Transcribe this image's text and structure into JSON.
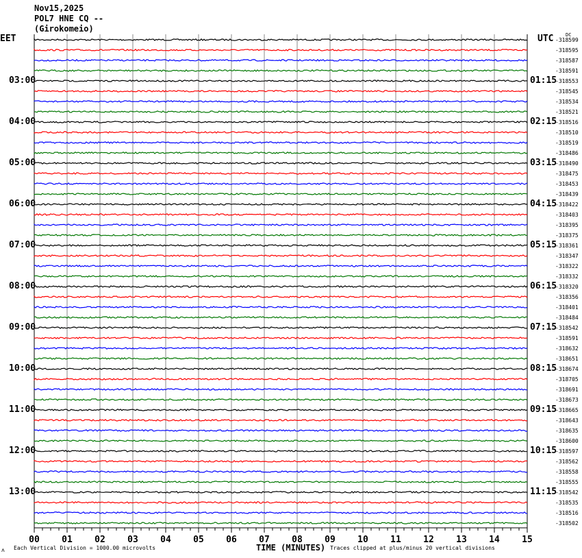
{
  "header": {
    "date": "Nov15,2025",
    "station": "POL7 HNE CQ --",
    "location": "(Girokomeio)"
  },
  "left_timezone": "EET",
  "right_timezone": "UTC",
  "dc_label": "DC",
  "chart_data": {
    "type": "line",
    "subtype": "helicorder",
    "xlabel": "TIME (MINUTES)",
    "x_ticks": [
      "00",
      "01",
      "02",
      "03",
      "04",
      "05",
      "06",
      "07",
      "08",
      "09",
      "10",
      "11",
      "12",
      "13",
      "14",
      "15"
    ],
    "xlim": [
      0,
      15
    ],
    "grid": true,
    "trace_colors": [
      "#000000",
      "#ff0000",
      "#0000ff",
      "#007700"
    ],
    "left_hour_labels": [
      "03:00",
      "04:00",
      "05:00",
      "06:00",
      "07:00",
      "08:00",
      "09:00",
      "10:00",
      "11:00",
      "12:00",
      "13:00"
    ],
    "right_hour_labels": [
      "01:15",
      "02:15",
      "03:15",
      "04:15",
      "05:15",
      "06:15",
      "07:15",
      "08:15",
      "09:15",
      "10:15",
      "11:15"
    ],
    "trace_offsets": [
      "-318599",
      "-318595",
      "-318587",
      "-318591",
      "-318553",
      "-318545",
      "-318534",
      "-318521",
      "-318516",
      "-318510",
      "-318519",
      "-318486",
      "-318490",
      "-318475",
      "-318453",
      "-318439",
      "-318422",
      "-318403",
      "-318395",
      "-318375",
      "-318361",
      "-318347",
      "-318322",
      "-318332",
      "-318320",
      "-318356",
      "-318401",
      "-318484",
      "-318542",
      "-318591",
      "-318632",
      "-318651",
      "-318674",
      "-318705",
      "-318691",
      "-318673",
      "-318665",
      "-318643",
      "-318635",
      "-318600",
      "-318597",
      "-318562",
      "-318558",
      "-318555",
      "-318542",
      "-318535",
      "-318516",
      "-318502"
    ]
  },
  "footer": {
    "scale": "Each Vertical Division = 1000.00 microvolts",
    "clip": "Traces clipped at plus/minus 20 vertical divisions",
    "corner_mark": "ʌ"
  }
}
